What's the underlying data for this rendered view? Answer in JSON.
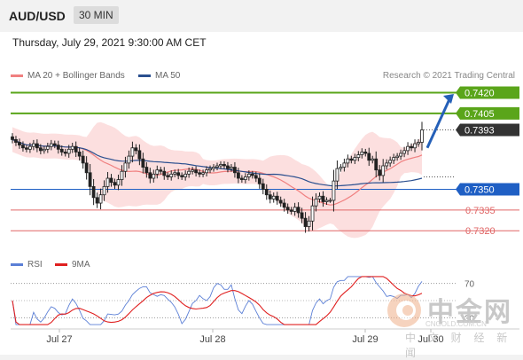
{
  "header": {
    "pair": "AUD/USD",
    "timeframe": "30 MIN"
  },
  "timestamp": "Thursday, July 29, 2021 9:30:00 AM CET",
  "legend": {
    "ma20_label": "MA 20 + Bollinger Bands",
    "ma50_label": "MA 50",
    "ma20_color": "#f08080",
    "ma50_color": "#2a4f8f",
    "research": "Research © 2021 Trading Central"
  },
  "rsi_legend": {
    "rsi_label": "RSI",
    "ma_label": "9MA",
    "rsi_color": "#5b7fd6",
    "ma_color": "#e02020"
  },
  "watermark": {
    "brand": "中金网",
    "sub": "中 文 财 经 新 闻",
    "url": "CNGOLD.COM.CN"
  },
  "chart_data": {
    "type": "candlestick",
    "ylim": [
      0.7306,
      0.7428
    ],
    "x_ticks": [
      "Jul 27",
      "Jul 28",
      "Jul 29",
      "Jul 30"
    ],
    "levels": [
      {
        "value": 0.742,
        "label": "0.7420",
        "kind": "resistance",
        "color": "#5aa51a"
      },
      {
        "value": 0.7405,
        "label": "0.7405",
        "kind": "resistance",
        "color": "#5aa51a"
      },
      {
        "value": 0.7393,
        "label": "0.7393",
        "kind": "last",
        "color": "#333333"
      },
      {
        "value": 0.735,
        "label": "0.7350",
        "kind": "pivot",
        "color": "#1f5fc4"
      },
      {
        "value": 0.7335,
        "label": "0.7335",
        "kind": "support",
        "color": "#e06666"
      },
      {
        "value": 0.732,
        "label": "0.7320",
        "kind": "support",
        "color": "#e06666"
      }
    ],
    "close": [
      0.7386,
      0.7384,
      0.7382,
      0.738,
      0.7379,
      0.7381,
      0.7383,
      0.738,
      0.7378,
      0.7379,
      0.7381,
      0.7383,
      0.7382,
      0.7379,
      0.7377,
      0.7376,
      0.7379,
      0.7381,
      0.7377,
      0.7374,
      0.7369,
      0.7362,
      0.7352,
      0.7344,
      0.734,
      0.7346,
      0.7352,
      0.7358,
      0.7355,
      0.7353,
      0.7357,
      0.7363,
      0.7369,
      0.7374,
      0.738,
      0.7378,
      0.7372,
      0.7366,
      0.7362,
      0.7358,
      0.7361,
      0.7364,
      0.7363,
      0.736,
      0.7359,
      0.7361,
      0.7362,
      0.736,
      0.7359,
      0.7361,
      0.7363,
      0.7364,
      0.7362,
      0.7361,
      0.7362,
      0.7364,
      0.7365,
      0.7366,
      0.7367,
      0.7368,
      0.7367,
      0.7365,
      0.7366,
      0.7362,
      0.7358,
      0.7357,
      0.7359,
      0.7361,
      0.736,
      0.7358,
      0.7354,
      0.735,
      0.7346,
      0.7343,
      0.7345,
      0.7342,
      0.734,
      0.7337,
      0.7335,
      0.7334,
      0.7337,
      0.7333,
      0.7329,
      0.7323,
      0.7327,
      0.7338,
      0.7343,
      0.7345,
      0.7341,
      0.7342,
      0.7342,
      0.7356,
      0.7365,
      0.7366,
      0.7369,
      0.7372,
      0.7371,
      0.7373,
      0.7375,
      0.7377,
      0.7376,
      0.7371,
      0.7372,
      0.7364,
      0.736,
      0.7367,
      0.7369,
      0.7371,
      0.7373,
      0.7374,
      0.7376,
      0.7378,
      0.7381,
      0.738,
      0.7383,
      0.7384,
      0.7393
    ],
    "rsi": {
      "overbought": 70,
      "oversold": 30
    }
  }
}
